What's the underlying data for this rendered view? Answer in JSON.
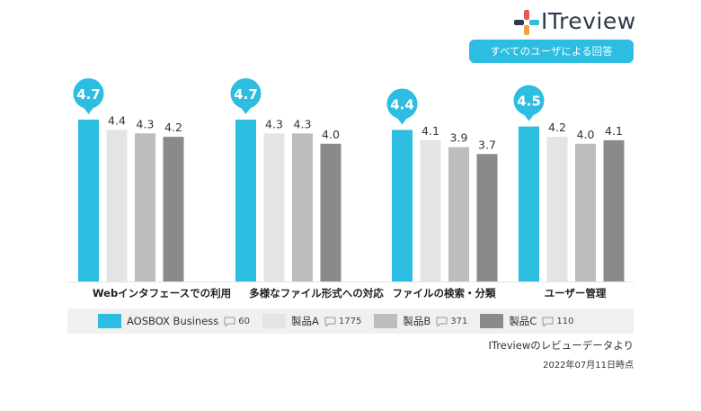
{
  "header": {
    "logo_text": "ITreview",
    "filter_label": "すべてのユーザによる回答"
  },
  "chart_data": {
    "type": "bar",
    "categories": [
      "Webインタフェースでの利用",
      "多様なファイル形式への対応",
      "ファイルの検索・分類",
      "ユーザー管理"
    ],
    "series": [
      {
        "name": "AOSBOX Business",
        "count": "60",
        "color": "#2cbde0",
        "values": [
          4.7,
          4.7,
          4.4,
          4.5
        ]
      },
      {
        "name": "製品A",
        "count": "1775",
        "color": "#e4e4e4",
        "values": [
          4.4,
          4.3,
          4.1,
          4.2
        ]
      },
      {
        "name": "製品B",
        "count": "371",
        "color": "#bdbdbd",
        "values": [
          4.3,
          4.3,
          3.9,
          4.0
        ]
      },
      {
        "name": "製品C",
        "count": "110",
        "color": "#8a8a8a",
        "values": [
          4.2,
          4.0,
          3.7,
          4.1
        ]
      }
    ],
    "value_labels": [
      [
        "4.7",
        "4.4",
        "4.3",
        "4.2"
      ],
      [
        "4.7",
        "4.3",
        "4.3",
        "4.0"
      ],
      [
        "4.4",
        "4.1",
        "3.9",
        "3.7"
      ],
      [
        "4.5",
        "4.2",
        "4.0",
        "4.1"
      ]
    ],
    "highlight_color": "#2cbde0"
  },
  "footer": {
    "source": "ITreviewのレビューデータより",
    "date": "2022年07月11日時点"
  }
}
